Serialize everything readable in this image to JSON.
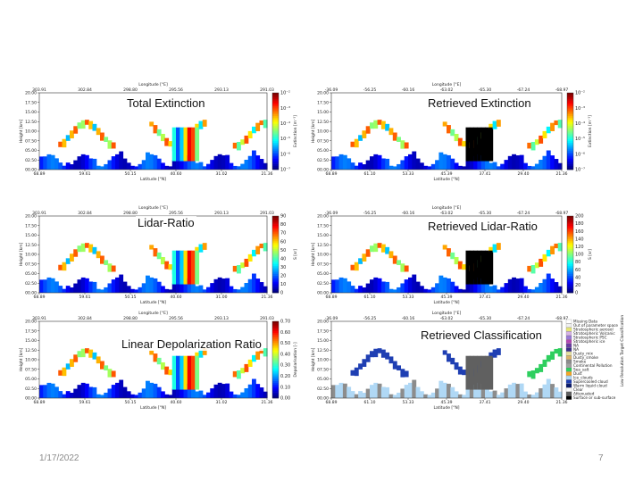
{
  "slide": {
    "date": "1/17/2022",
    "page_number": "7"
  },
  "chart_data": [
    {
      "type": "heatmap",
      "title": "Total Extinction",
      "xlabel_top": "Longitude [°E]",
      "xlabel_bottom": "Latitude [°N]",
      "ylabel": "Height [km]",
      "x_top_ticks": [
        "303.91",
        "302.84",
        "298.80",
        "295.56",
        "293.13",
        "291.03"
      ],
      "x_bottom_ticks": [
        "68.89",
        "59.61",
        "50.15",
        "40.60",
        "31.02",
        "21.36"
      ],
      "y_ticks": [
        "00.00",
        "02.50",
        "05.00",
        "07.50",
        "10.00",
        "12.50",
        "15.00",
        "17.50",
        "20.00"
      ],
      "ylim": [
        0,
        20
      ],
      "colorbar": {
        "label": "Extinction [m⁻¹]",
        "scale": "log",
        "ticks": [
          "10⁻⁷",
          "10⁻⁶",
          "10⁻⁵",
          "10⁻⁴",
          "10⁻³",
          "10⁻²"
        ]
      }
    },
    {
      "type": "heatmap",
      "title": "Retrieved Extinction",
      "xlabel_top": "Longitude [°E]",
      "xlabel_bottom": "Latitude [°N]",
      "ylabel": "Height [km]",
      "x_top_ticks": [
        "-36.09",
        "-56.25",
        "-60.16",
        "-63.02",
        "-65.30",
        "-67.24",
        "-68.97"
      ],
      "x_bottom_ticks": [
        "68.89",
        "61.10",
        "53.33",
        "45.39",
        "37.41",
        "29.40",
        "21.36"
      ],
      "y_ticks": [
        "00.00",
        "02.50",
        "05.00",
        "07.50",
        "10.00",
        "12.50",
        "15.00",
        "17.50",
        "20.00"
      ],
      "ylim": [
        0,
        20
      ],
      "colorbar": {
        "label": "Extinction [m⁻¹]",
        "scale": "log",
        "ticks": [
          "10⁻⁷",
          "10⁻⁶",
          "10⁻⁵",
          "10⁻⁴",
          "10⁻³",
          "10⁻²"
        ]
      }
    },
    {
      "type": "heatmap",
      "title": "Lidar-Ratio",
      "xlabel_top": "Longitude [°E]",
      "xlabel_bottom": "Latitude [°N]",
      "ylabel": "Height [km]",
      "x_top_ticks": [
        "303.91",
        "302.84",
        "298.80",
        "295.56",
        "293.13",
        "291.03"
      ],
      "x_bottom_ticks": [
        "68.89",
        "59.61",
        "50.15",
        "40.60",
        "31.00",
        "21.36"
      ],
      "y_ticks": [
        "00.00",
        "02.50",
        "05.00",
        "07.50",
        "10.00",
        "12.50",
        "15.00",
        "17.50",
        "20.00"
      ],
      "ylim": [
        0,
        20
      ],
      "colorbar": {
        "label": "S [sr]",
        "scale": "linear",
        "ticks": [
          "0",
          "10",
          "20",
          "30",
          "40",
          "50",
          "60",
          "70",
          "80",
          "90"
        ]
      }
    },
    {
      "type": "heatmap",
      "title": "Retrieved Lidar-Ratio",
      "xlabel_top": "Longitude [°E]",
      "xlabel_bottom": "Latitude [°N]",
      "ylabel": "Height [km]",
      "x_top_ticks": [
        "-36.09",
        "-56.25",
        "-60.16",
        "-63.02",
        "-65.30",
        "-67.24",
        "-68.97"
      ],
      "x_bottom_ticks": [
        "68.89",
        "61.10",
        "53.33",
        "45.39",
        "37.41",
        "29.40",
        "21.36"
      ],
      "y_ticks": [
        "00.00",
        "02.50",
        "05.00",
        "07.50",
        "10.00",
        "12.50",
        "15.00",
        "17.50",
        "20.00"
      ],
      "ylim": [
        0,
        20
      ],
      "colorbar": {
        "label": "S [sr]",
        "scale": "linear",
        "ticks": [
          "0",
          "20",
          "40",
          "60",
          "80",
          "100",
          "120",
          "140",
          "160",
          "180",
          "200"
        ]
      }
    },
    {
      "type": "heatmap",
      "title": "Linear Depolarization Ratio",
      "xlabel_top": "Longitude [°E]",
      "xlabel_bottom": "Latitude [°N]",
      "ylabel": "Height [km]",
      "x_top_ticks": [
        "303.91",
        "302.84",
        "298.80",
        "295.56",
        "293.13",
        "291.03"
      ],
      "x_bottom_ticks": [
        "68.89",
        "59.61",
        "50.15",
        "40.60",
        "31.02",
        "21.36"
      ],
      "y_ticks": [
        "00.00",
        "02.50",
        "05.00",
        "07.50",
        "10.00",
        "12.50",
        "15.00",
        "17.50",
        "20.00"
      ],
      "ylim": [
        0,
        20
      ],
      "colorbar": {
        "label": "Depolarisation [-]",
        "scale": "linear",
        "ticks": [
          "0.00",
          "0.10",
          "0.20",
          "0.30",
          "0.40",
          "0.50",
          "0.60",
          "0.70"
        ]
      }
    },
    {
      "type": "heatmap",
      "title": "Retrieved Classification",
      "xlabel_top": "Longitude [°E]",
      "xlabel_bottom": "Latitude [°N]",
      "ylabel": "Height [km]",
      "x_top_ticks": [
        "-36.09",
        "-56.25",
        "-60.16",
        "-63.02",
        "-65.30",
        "-67.24",
        "-68.97"
      ],
      "x_bottom_ticks": [
        "68.89",
        "61.10",
        "53.33",
        "45.39",
        "37.41",
        "29.40",
        "21.36"
      ],
      "y_ticks": [
        "00.00",
        "02.50",
        "05.00",
        "07.50",
        "10.00",
        "12.50",
        "15.00",
        "17.50",
        "20.00"
      ],
      "ylim": [
        0,
        20
      ],
      "legend_title": "Low Resolution Target Classification",
      "legend": [
        {
          "label": "Missing Data",
          "color": "#ffffff"
        },
        {
          "label": "Out of parameter space",
          "color": "#f0f0f0"
        },
        {
          "label": "Stratospheric aerosol",
          "color": "#e6e675"
        },
        {
          "label": "Stratospheric Volcanic",
          "color": "#d6b1e6"
        },
        {
          "label": "Stratospheric PSC",
          "color": "#9a7ad6"
        },
        {
          "label": "Stratospheric ice",
          "color": "#b347b3"
        },
        {
          "label": "NA",
          "color": "#6b3aa3"
        },
        {
          "label": "NA",
          "color": "#3b2f8a"
        },
        {
          "label": "Dusty_mix",
          "color": "#e6e0a0"
        },
        {
          "label": "Dusty_smoke",
          "color": "#d9b36b"
        },
        {
          "label": "Smoke",
          "color": "#8c8c8c"
        },
        {
          "label": "Continental Pollution",
          "color": "#a0a0a0"
        },
        {
          "label": "Sea_salt",
          "color": "#2ecf5f"
        },
        {
          "label": "Dust",
          "color": "#f5a623"
        },
        {
          "label": "Ice_clouds",
          "color": "#b0d8f5"
        },
        {
          "label": "Supercooled cloud",
          "color": "#1f3fb3"
        },
        {
          "label": "Warm liquid cloud",
          "color": "#0a1a6b"
        },
        {
          "label": "Clear",
          "color": "#fafafa"
        },
        {
          "label": "Attenuated",
          "color": "#606060"
        },
        {
          "label": "Surface or sub-surface",
          "color": "#000000"
        }
      ]
    }
  ]
}
